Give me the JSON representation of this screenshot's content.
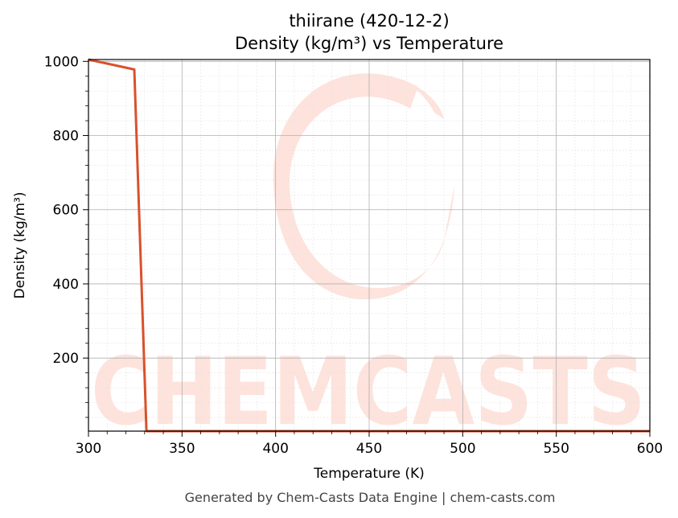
{
  "footer": "Generated by Chem-Casts Data Engine | chem-casts.com",
  "watermark": "CHEMCASTS",
  "colors": {
    "line": "#d9512c",
    "watermark": "#fde3dc",
    "grid_major": "#b0b0b0",
    "grid_minor": "#e4e4e4"
  },
  "chart_data": {
    "type": "line",
    "title": "thiirane (420-12-2)",
    "subtitle": "Density (kg/m³) vs Temperature",
    "xlabel": "Temperature (K)",
    "ylabel": "Density (kg/m³)",
    "xlim": [
      300,
      600
    ],
    "ylim": [
      3,
      1005
    ],
    "xticks": [
      300,
      350,
      400,
      450,
      500,
      550,
      600
    ],
    "yticks": [
      200,
      400,
      600,
      800,
      1000
    ],
    "grid": true,
    "series": [
      {
        "name": "",
        "x": [
          300,
          324.5,
          331,
          333,
          600
        ],
        "y": [
          1005,
          978,
          3,
          3,
          3
        ]
      }
    ]
  }
}
